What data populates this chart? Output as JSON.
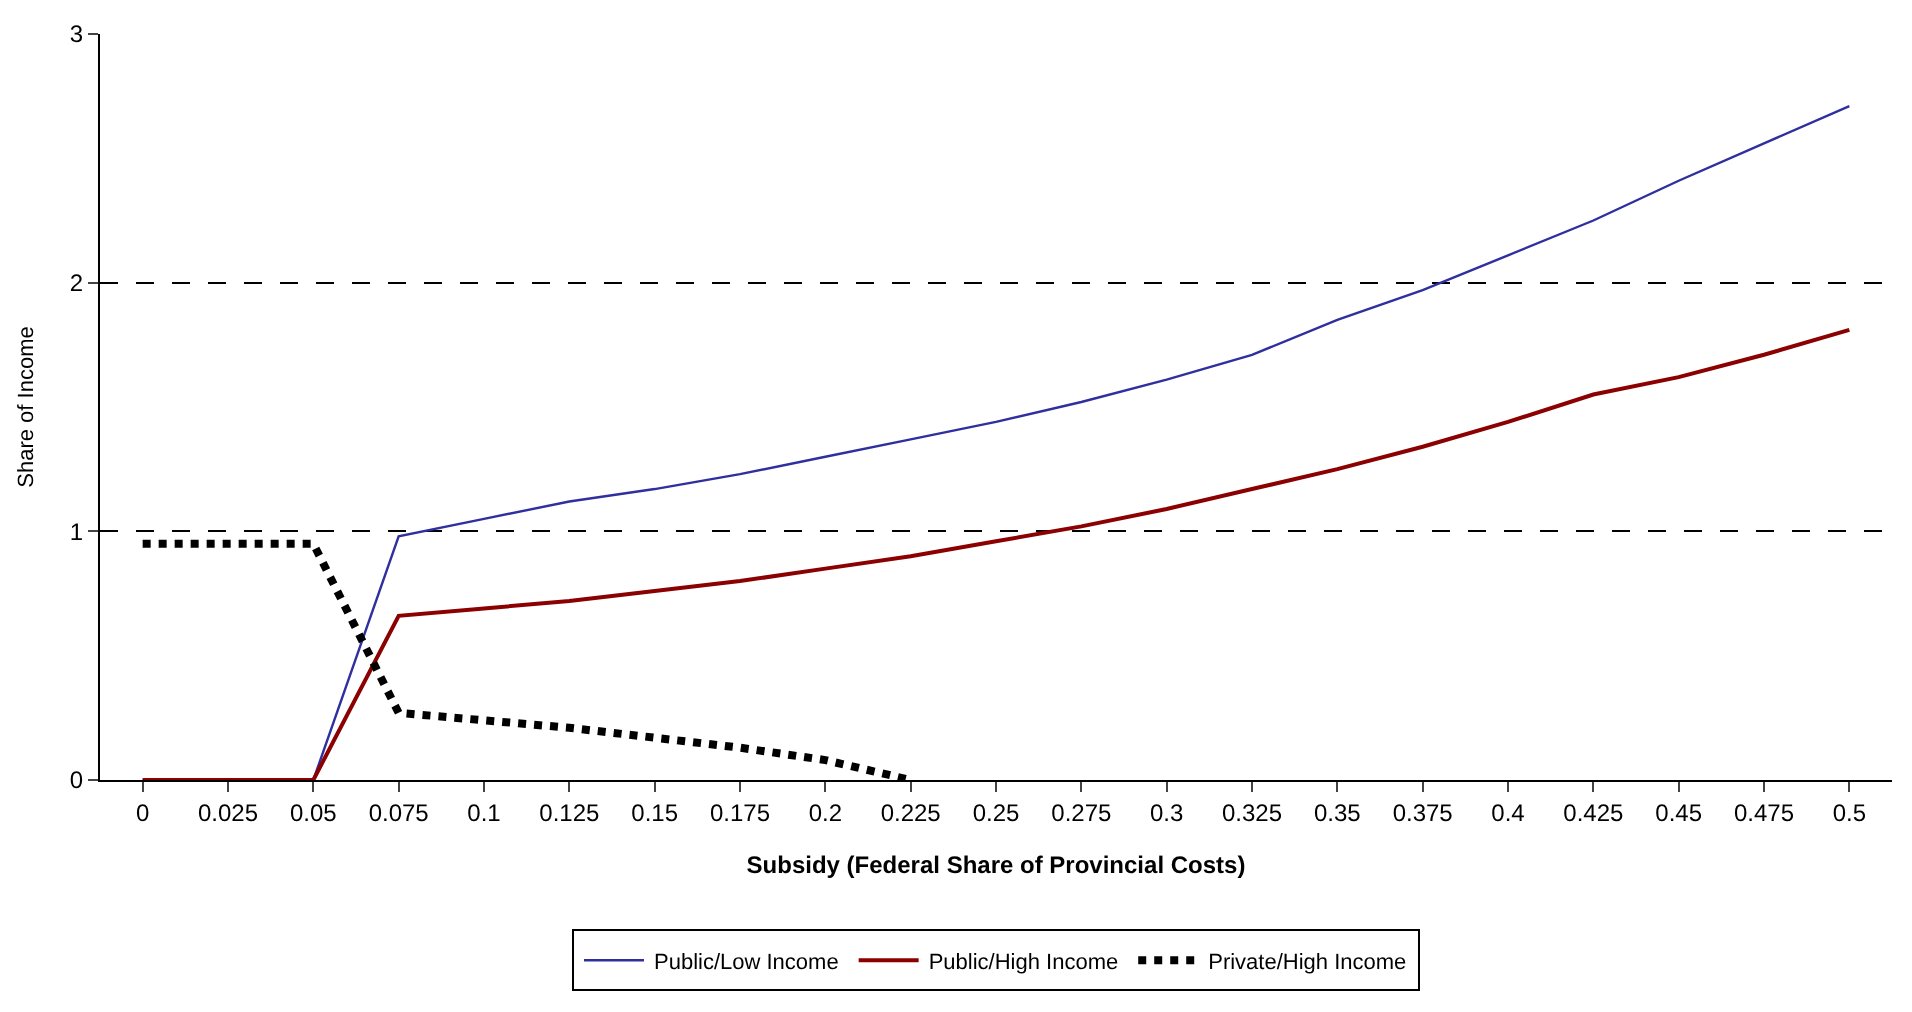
{
  "chart_data": {
    "type": "line",
    "xlabel": "Subsidy (Federal Share of Provincial Costs)",
    "ylabel": "Share of Income",
    "categories": [
      "0",
      "0.025",
      "0.05",
      "0.075",
      "0.1",
      "0.125",
      "0.15",
      "0.175",
      "0.2",
      "0.225",
      "0.25",
      "0.275",
      "0.3",
      "0.325",
      "0.35",
      "0.375",
      "0.4",
      "0.425",
      "0.45",
      "0.475",
      "0.5"
    ],
    "ylim": [
      0,
      3
    ],
    "yticks": [
      0,
      1,
      2,
      3
    ],
    "grid": "y",
    "legend": "bottom",
    "marker": "none",
    "series": [
      {
        "name": "Public/Low Income",
        "color": "#2f2f9f",
        "line_style": "solid",
        "values": [
          0,
          0,
          0,
          0.98,
          1.05,
          1.12,
          1.17,
          1.23,
          1.3,
          1.37,
          1.44,
          1.52,
          1.61,
          1.71,
          1.85,
          1.97,
          2.11,
          2.25,
          2.41,
          2.56,
          2.71
        ]
      },
      {
        "name": "Public/High Income",
        "color": "#8b0000",
        "line_style": "solid",
        "values": [
          0,
          0,
          0,
          0.66,
          0.69,
          0.72,
          0.76,
          0.8,
          0.85,
          0.9,
          0.96,
          1.02,
          1.09,
          1.17,
          1.25,
          1.34,
          1.44,
          1.55,
          1.62,
          1.71,
          1.81
        ]
      },
      {
        "name": "Private/High Income",
        "color": "#000000",
        "line_style": "dotted",
        "values": [
          0.95,
          0.95,
          0.95,
          0.27,
          0.24,
          0.21,
          0.17,
          0.13,
          0.08,
          0.0,
          null,
          null,
          null,
          null,
          null,
          null,
          null,
          null,
          null,
          null,
          null
        ]
      }
    ]
  }
}
